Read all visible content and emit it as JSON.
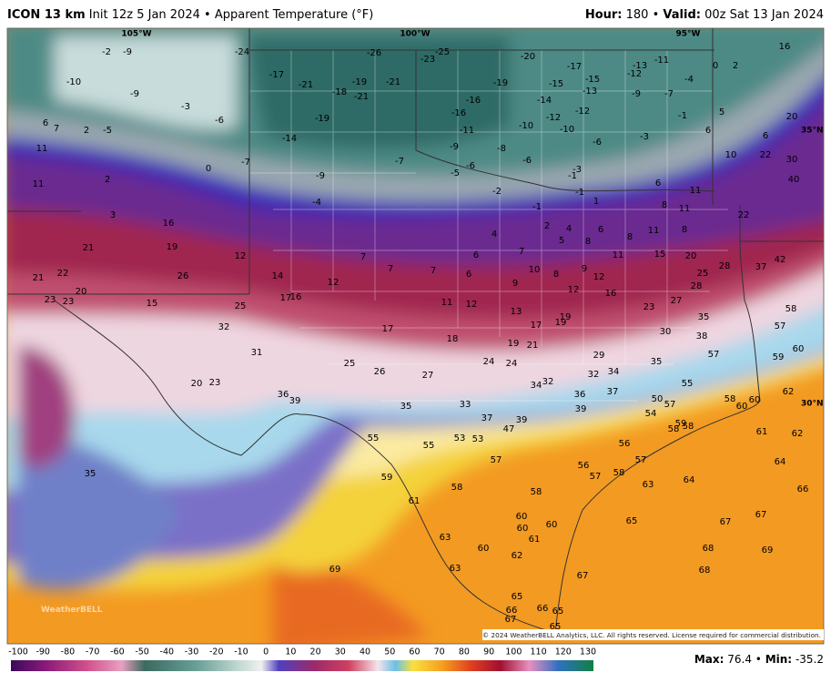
{
  "header": {
    "model": "ICON 13 km",
    "init": "Init 12z 5 Jan 2024",
    "separator": "•",
    "field": "Apparent Temperature (°F)",
    "hour_label": "Hour:",
    "hour": "180",
    "valid_label": "Valid:",
    "valid": "00z Sat 13 Jan 2024"
  },
  "map": {
    "longitude_labels": [
      "105°W",
      "100°W",
      "95°W"
    ],
    "latitude_labels": [
      "35°N",
      "30°N"
    ],
    "logo": "WeatherBELL",
    "copyright": "© 2024 WeatherBELL Analytics, LLC. All rights reserved. License required for commercial distribution.",
    "station_values": [
      -2,
      -9,
      -24,
      -26,
      -23,
      -25,
      -20,
      -11,
      -13,
      -17,
      -12,
      -15,
      0,
      2,
      16,
      -10,
      -17,
      -21,
      -19,
      -21,
      -18,
      -21,
      -19,
      -15,
      -13,
      -9,
      -7,
      -4,
      -16,
      -14,
      -12,
      -3,
      -9,
      -6,
      5,
      20,
      -19,
      -16,
      -12,
      -1,
      6,
      7,
      2,
      -5,
      -10,
      -11,
      -10,
      -6,
      -3,
      6,
      -14,
      -9,
      -8,
      11,
      6,
      10,
      22,
      30,
      -7,
      -7,
      -6,
      -6,
      -3,
      0,
      -5,
      -1,
      40,
      11,
      2,
      -9,
      6,
      -2,
      -1,
      11,
      -4,
      -1,
      1,
      8,
      11,
      22,
      3,
      16,
      2,
      4,
      6,
      4,
      8,
      11,
      8,
      5,
      8,
      19,
      21,
      7,
      6,
      7,
      11,
      15,
      20,
      12,
      26,
      7,
      7,
      6,
      10,
      8,
      9,
      12,
      25,
      28,
      37,
      42,
      21,
      22,
      14,
      12,
      9,
      12,
      16,
      28,
      20,
      23,
      23,
      15,
      17,
      16,
      25,
      11,
      12,
      23,
      27,
      13,
      58,
      17,
      19,
      19,
      35,
      32,
      17,
      30,
      57,
      18,
      19,
      21,
      38,
      31,
      60,
      57,
      59,
      29,
      25,
      24,
      24,
      35,
      26,
      27,
      32,
      34,
      55,
      20,
      23,
      34,
      32,
      36,
      39,
      36,
      37,
      62,
      58,
      60,
      60,
      50,
      57,
      35,
      33,
      39,
      54,
      37,
      39,
      47,
      58,
      58,
      59,
      61,
      62,
      55,
      53,
      53,
      55,
      56,
      57,
      57,
      64,
      35,
      56,
      57,
      58,
      59,
      64,
      63,
      58,
      66,
      58,
      61,
      60,
      60,
      65,
      67,
      67,
      60,
      63,
      61,
      60,
      68,
      69,
      62,
      63,
      69,
      68,
      67,
      65,
      66,
      66,
      67,
      65,
      65
    ]
  },
  "colorbar": {
    "ticks": [
      -100,
      -90,
      -80,
      -70,
      -60,
      -50,
      -40,
      -30,
      -20,
      -10,
      0,
      10,
      20,
      30,
      40,
      50,
      60,
      70,
      80,
      90,
      100,
      110,
      120,
      130
    ]
  },
  "stats": {
    "max_label": "Max:",
    "max": 76.4,
    "separator": "•",
    "min_label": "Min:",
    "min": -35.2
  }
}
